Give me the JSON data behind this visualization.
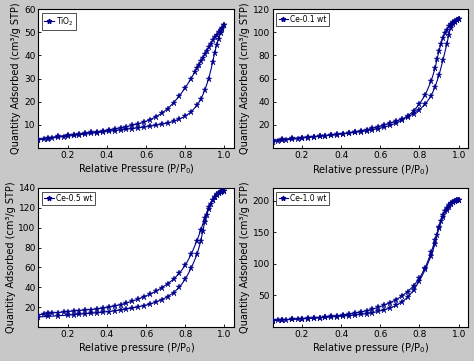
{
  "subplots": [
    {
      "label": "TiO$_2$",
      "ylabel": "Quantity Adsorbed (cm³/g STP)",
      "xlabel": "Relative Pressure (P/P$_0$)",
      "ylim": [
        0,
        60
      ],
      "yticks": [
        10,
        20,
        30,
        40,
        50,
        60
      ],
      "xlim": [
        0.05,
        1.05
      ],
      "xticks": [
        0.2,
        0.4,
        0.6,
        0.8,
        1.0
      ],
      "adsorption_x": [
        0.05,
        0.08,
        0.1,
        0.12,
        0.15,
        0.18,
        0.2,
        0.23,
        0.26,
        0.29,
        0.32,
        0.35,
        0.38,
        0.41,
        0.44,
        0.47,
        0.5,
        0.53,
        0.56,
        0.59,
        0.62,
        0.65,
        0.68,
        0.71,
        0.74,
        0.77,
        0.8,
        0.83,
        0.86,
        0.88,
        0.9,
        0.92,
        0.94,
        0.95,
        0.96,
        0.97,
        0.98,
        0.99,
        1.0
      ],
      "adsorption_y": [
        3.5,
        3.8,
        4.0,
        4.3,
        4.6,
        4.9,
        5.1,
        5.4,
        5.7,
        6.0,
        6.3,
        6.6,
        6.9,
        7.2,
        7.5,
        7.8,
        8.1,
        8.4,
        8.7,
        9.0,
        9.4,
        9.8,
        10.3,
        10.8,
        11.5,
        12.5,
        13.8,
        15.5,
        18.5,
        21.0,
        25.0,
        30.0,
        37.0,
        41.0,
        44.5,
        47.0,
        49.5,
        51.5,
        53.0
      ],
      "desorption_x": [
        1.0,
        0.99,
        0.98,
        0.97,
        0.96,
        0.95,
        0.94,
        0.93,
        0.92,
        0.91,
        0.9,
        0.89,
        0.88,
        0.87,
        0.86,
        0.85,
        0.83,
        0.8,
        0.77,
        0.74,
        0.71,
        0.68,
        0.65,
        0.62,
        0.59,
        0.56,
        0.53,
        0.5,
        0.47,
        0.44,
        0.41,
        0.38,
        0.35,
        0.32,
        0.29,
        0.26,
        0.23,
        0.2,
        0.15,
        0.1,
        0.05
      ],
      "desorption_y": [
        53.0,
        52.0,
        51.0,
        50.0,
        49.0,
        48.0,
        46.5,
        45.0,
        43.5,
        42.0,
        40.5,
        39.0,
        37.5,
        36.0,
        34.5,
        33.0,
        30.0,
        26.0,
        22.5,
        19.5,
        17.0,
        15.0,
        13.5,
        12.2,
        11.2,
        10.4,
        9.8,
        9.2,
        8.7,
        8.2,
        7.8,
        7.4,
        7.0,
        6.7,
        6.4,
        6.1,
        5.8,
        5.5,
        5.0,
        4.4,
        3.8
      ]
    },
    {
      "label": "Ce-0.1 wt",
      "ylabel": "Quantity Adsorbed (cm³/g STP)",
      "xlabel": "Relative pressure (P/P$_0$)",
      "ylim": [
        0,
        120
      ],
      "yticks": [
        20,
        40,
        60,
        80,
        100,
        120
      ],
      "xlim": [
        0.05,
        1.05
      ],
      "xticks": [
        0.2,
        0.4,
        0.6,
        0.8,
        1.0
      ],
      "adsorption_x": [
        0.05,
        0.08,
        0.1,
        0.12,
        0.15,
        0.18,
        0.2,
        0.23,
        0.26,
        0.29,
        0.32,
        0.35,
        0.38,
        0.41,
        0.44,
        0.47,
        0.5,
        0.53,
        0.56,
        0.59,
        0.62,
        0.65,
        0.68,
        0.71,
        0.74,
        0.77,
        0.8,
        0.83,
        0.86,
        0.88,
        0.9,
        0.92,
        0.94,
        0.95,
        0.96,
        0.97,
        0.98,
        0.99,
        1.0
      ],
      "adsorption_y": [
        5.5,
        6.0,
        6.5,
        7.0,
        7.5,
        8.0,
        8.5,
        9.0,
        9.5,
        10.0,
        10.5,
        11.0,
        11.5,
        12.2,
        13.0,
        13.8,
        14.8,
        15.8,
        17.0,
        18.5,
        20.0,
        21.5,
        23.2,
        25.0,
        27.0,
        29.5,
        33.0,
        38.0,
        45.0,
        53.0,
        63.0,
        76.0,
        90.0,
        98.0,
        104.0,
        107.0,
        109.0,
        110.5,
        111.5
      ],
      "desorption_x": [
        1.0,
        0.99,
        0.98,
        0.97,
        0.96,
        0.95,
        0.94,
        0.93,
        0.92,
        0.91,
        0.9,
        0.89,
        0.88,
        0.86,
        0.83,
        0.8,
        0.77,
        0.74,
        0.71,
        0.68,
        0.65,
        0.62,
        0.59,
        0.56,
        0.53,
        0.5,
        0.47,
        0.44,
        0.41,
        0.38,
        0.35,
        0.32,
        0.29,
        0.26,
        0.23,
        0.2,
        0.15,
        0.1,
        0.05
      ],
      "desorption_y": [
        111.5,
        110.5,
        109.5,
        108.5,
        107.0,
        105.0,
        102.0,
        99.0,
        95.0,
        90.0,
        84.0,
        77.0,
        69.0,
        58.0,
        46.0,
        38.0,
        32.0,
        27.5,
        24.0,
        21.5,
        19.5,
        18.0,
        16.8,
        15.8,
        14.9,
        14.1,
        13.4,
        12.8,
        12.2,
        11.7,
        11.2,
        10.7,
        10.2,
        9.8,
        9.4,
        9.0,
        8.3,
        7.5,
        6.5
      ]
    },
    {
      "label": "Ce-0.5 wt",
      "ylabel": "Quantity Adsorbed (cm³/g STP)",
      "xlabel": "Relative pressure (P/P$_0$)",
      "ylim": [
        0,
        140
      ],
      "yticks": [
        20,
        40,
        60,
        80,
        100,
        120,
        140
      ],
      "xlim": [
        0.05,
        1.05
      ],
      "xticks": [
        0.2,
        0.4,
        0.6,
        0.8,
        1.0
      ],
      "adsorption_x": [
        0.05,
        0.08,
        0.1,
        0.12,
        0.15,
        0.18,
        0.2,
        0.23,
        0.26,
        0.29,
        0.32,
        0.35,
        0.38,
        0.41,
        0.44,
        0.47,
        0.5,
        0.53,
        0.56,
        0.59,
        0.62,
        0.65,
        0.68,
        0.71,
        0.74,
        0.77,
        0.8,
        0.83,
        0.86,
        0.88,
        0.9,
        0.92,
        0.94,
        0.95,
        0.96,
        0.97,
        0.98,
        0.99,
        1.0
      ],
      "adsorption_y": [
        12.0,
        13.0,
        13.5,
        14.0,
        14.5,
        15.0,
        15.5,
        16.0,
        16.5,
        17.0,
        17.5,
        18.0,
        18.8,
        19.8,
        21.0,
        22.5,
        24.0,
        26.0,
        28.0,
        30.5,
        33.0,
        36.0,
        39.5,
        43.5,
        48.0,
        54.0,
        62.0,
        73.0,
        87.0,
        98.0,
        110.0,
        121.0,
        128.0,
        131.0,
        133.0,
        134.5,
        135.5,
        136.5,
        137.0
      ],
      "desorption_x": [
        1.0,
        0.99,
        0.98,
        0.97,
        0.96,
        0.95,
        0.94,
        0.93,
        0.92,
        0.91,
        0.9,
        0.89,
        0.88,
        0.86,
        0.83,
        0.8,
        0.77,
        0.74,
        0.71,
        0.68,
        0.65,
        0.62,
        0.59,
        0.56,
        0.53,
        0.5,
        0.47,
        0.44,
        0.41,
        0.38,
        0.35,
        0.32,
        0.29,
        0.26,
        0.23,
        0.2,
        0.15,
        0.1,
        0.05
      ],
      "desorption_y": [
        137.0,
        136.5,
        136.0,
        135.0,
        133.5,
        131.0,
        128.0,
        124.0,
        119.0,
        113.0,
        106.0,
        97.0,
        87.0,
        73.0,
        59.0,
        48.0,
        40.0,
        34.5,
        30.5,
        27.5,
        25.0,
        23.0,
        21.5,
        20.2,
        19.0,
        18.0,
        17.0,
        16.2,
        15.5,
        14.8,
        14.2,
        13.7,
        13.2,
        12.7,
        12.2,
        11.8,
        11.2,
        10.5,
        10.0
      ]
    },
    {
      "label": "Ce-1.0 wt",
      "ylabel": "Quantity Adsorbed (cm³/g STP)",
      "xlabel": "Relative pressure (P/P$_0$)",
      "ylim": [
        0,
        220
      ],
      "yticks": [
        50,
        100,
        150,
        200
      ],
      "xlim": [
        0.05,
        1.05
      ],
      "xticks": [
        0.2,
        0.4,
        0.6,
        0.8,
        1.0
      ],
      "adsorption_x": [
        0.05,
        0.08,
        0.1,
        0.12,
        0.15,
        0.18,
        0.2,
        0.23,
        0.26,
        0.29,
        0.32,
        0.35,
        0.38,
        0.41,
        0.44,
        0.47,
        0.5,
        0.53,
        0.56,
        0.59,
        0.62,
        0.65,
        0.68,
        0.71,
        0.74,
        0.77,
        0.8,
        0.83,
        0.86,
        0.88,
        0.9,
        0.92,
        0.94,
        0.95,
        0.96,
        0.97,
        0.98,
        0.99,
        1.0
      ],
      "adsorption_y": [
        10.0,
        10.5,
        11.0,
        11.5,
        12.0,
        12.5,
        13.0,
        13.5,
        14.0,
        14.8,
        15.5,
        16.5,
        17.5,
        18.8,
        20.2,
        21.8,
        23.5,
        25.5,
        28.0,
        31.0,
        34.5,
        38.5,
        43.0,
        49.0,
        56.0,
        65.0,
        77.0,
        94.0,
        118.0,
        138.0,
        157.0,
        174.0,
        185.0,
        190.0,
        194.0,
        197.0,
        199.0,
        200.5,
        201.5
      ],
      "desorption_x": [
        1.0,
        0.99,
        0.98,
        0.97,
        0.96,
        0.95,
        0.94,
        0.93,
        0.92,
        0.91,
        0.9,
        0.89,
        0.88,
        0.86,
        0.83,
        0.8,
        0.77,
        0.74,
        0.71,
        0.68,
        0.65,
        0.62,
        0.59,
        0.56,
        0.53,
        0.5,
        0.47,
        0.44,
        0.41,
        0.38,
        0.35,
        0.32,
        0.29,
        0.26,
        0.23,
        0.2,
        0.15,
        0.1,
        0.05
      ],
      "desorption_y": [
        201.5,
        200.5,
        199.5,
        198.0,
        196.0,
        193.0,
        189.0,
        184.0,
        177.0,
        168.0,
        158.0,
        146.0,
        132.0,
        113.0,
        91.0,
        73.0,
        58.0,
        47.0,
        39.5,
        34.0,
        30.0,
        27.0,
        24.5,
        22.5,
        21.0,
        19.8,
        18.8,
        17.9,
        17.1,
        16.4,
        15.7,
        15.0,
        14.4,
        13.8,
        13.2,
        12.7,
        11.8,
        11.0,
        10.2
      ]
    }
  ],
  "line_color": "#00008B",
  "marker": "*",
  "marker_size": 4.5,
  "line_width": 0.8,
  "bg_color": "#ffffff",
  "fig_bg_color": "#c8c8c8",
  "tick_fontsize": 6.5,
  "label_fontsize": 7,
  "legend_fontsize": 5.5
}
